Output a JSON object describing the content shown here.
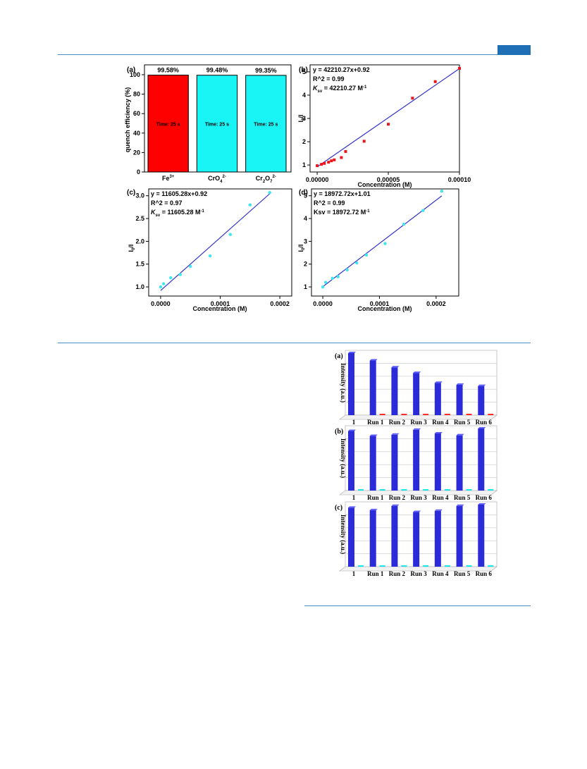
{
  "colors": {
    "accent": "#1f6fb6",
    "rule": "#4a8ec9",
    "red": "#ff0000",
    "cyan": "#19f5f5",
    "blue": "#2b2bd9",
    "fit": "#3333cc"
  },
  "figure1": {
    "panel_a": {
      "label": "(a)",
      "ylabel": "quench efficiency (%)",
      "yticks": [
        "0",
        "20",
        "40",
        "60",
        "80",
        "100"
      ],
      "bars": [
        {
          "pct": "99.58%",
          "time": "Time: 25 s",
          "ion": "Fe",
          "sup": "3+",
          "sub": "",
          "color": "#ff0000",
          "value": 99.58
        },
        {
          "pct": "99.48%",
          "time": "Time: 25 s",
          "ion": "CrO",
          "sub": "4",
          "sup": "2-",
          "color": "#19f5f5",
          "value": 99.48
        },
        {
          "pct": "99.35%",
          "time": "Time: 25 s",
          "ion": "Cr",
          "sub": "2",
          "mid": "O",
          "sub2": "7",
          "sup": "2-",
          "color": "#19f5f5",
          "value": 99.35
        }
      ]
    },
    "panel_b": {
      "label": "(b)",
      "eq": "y = 42210.27x+0.92",
      "r2": "R^2 = 0.99",
      "k": "K",
      "ksub": "sv",
      "kval": " = 42210.27 M",
      "kunit": "-1",
      "xlabel": "Concentration (M)",
      "ylabel": "I0/I",
      "xticks": [
        "0.00000",
        "0.00005",
        "0.00010"
      ],
      "yticks": [
        "1",
        "2",
        "3",
        "4",
        "5"
      ]
    },
    "panel_c": {
      "label": "(c)",
      "eq": "y = 11605.28x+0.92",
      "r2": "R^2 = 0.97",
      "k": "K",
      "ksub": "sv",
      "kval": " = 11605.28 M",
      "kunit": "-1",
      "xlabel": "Concentration (M)",
      "ylabel": "I0/I",
      "xticks": [
        "0.0000",
        "0.0001",
        "0.0002"
      ],
      "yticks": [
        "1.0",
        "1.5",
        "2.0",
        "2.5",
        "3.0"
      ]
    },
    "panel_d": {
      "label": "(d)",
      "eq": "y = 18972.72x+1.01",
      "r2": "R^2 = 0.99",
      "k": "Ksv = 18972.72 M",
      "kunit": "-1",
      "xlabel": "Concentration (M)",
      "ylabel": "I0/I",
      "xticks": [
        "0.0000",
        "0.0001",
        "0.0002"
      ],
      "yticks": [
        "1",
        "2",
        "3",
        "4",
        "5"
      ]
    }
  },
  "figure2": {
    "ylabel": "Intensity (a.u.)",
    "categories": [
      "1",
      "Run 1",
      "Run 2",
      "Run 3",
      "Run 4",
      "Run 5",
      "Run 6"
    ],
    "panels": [
      {
        "label": "(a)",
        "small_color": "#ff2a2a"
      },
      {
        "label": "(b)",
        "small_color": "#19e6e6"
      },
      {
        "label": "(c)",
        "small_color": "#19e6e6"
      }
    ]
  },
  "chart_data": [
    {
      "type": "bar",
      "title": "",
      "categories": [
        "Fe3+",
        "CrO4 2-",
        "Cr2O7 2-"
      ],
      "values": [
        99.58,
        99.48,
        99.35
      ],
      "ylabel": "quench efficiency (%)",
      "ylim": [
        0,
        100
      ]
    },
    {
      "type": "scatter",
      "title": "",
      "xlabel": "Concentration (M)",
      "ylabel": "I0/I",
      "xlim": [
        -5e-06,
        0.0001
      ],
      "ylim": [
        0.7,
        5.3
      ],
      "x": [
        0.0,
        3e-06,
        5e-06,
        8e-06,
        1e-05,
        1.2e-05,
        1.7e-05,
        2e-05,
        3.3e-05,
        5e-05,
        6.7e-05,
        8.3e-05,
        0.0001
      ],
      "y": [
        0.97,
        1.03,
        1.07,
        1.12,
        1.18,
        1.22,
        1.32,
        1.58,
        2.02,
        2.75,
        3.87,
        4.58,
        5.15
      ],
      "fit": {
        "slope": 42210.27,
        "intercept": 0.92
      }
    },
    {
      "type": "scatter",
      "title": "",
      "xlabel": "Concentration (M)",
      "ylabel": "I0/I",
      "xlim": [
        -2e-05,
        0.00022
      ],
      "ylim": [
        0.8,
        3.15
      ],
      "x": [
        0.0,
        5e-06,
        1.7e-05,
        3.3e-05,
        5e-05,
        8.3e-05,
        0.000117,
        0.00015,
        0.000183
      ],
      "y": [
        1.0,
        1.07,
        1.2,
        1.27,
        1.45,
        1.68,
        2.15,
        2.8,
        3.07
      ],
      "fit": {
        "slope": 11605.28,
        "intercept": 0.92
      }
    },
    {
      "type": "scatter",
      "title": "",
      "xlabel": "Concentration (M)",
      "ylabel": "I0/I",
      "xlim": [
        -2e-05,
        0.00024
      ],
      "ylim": [
        0.6,
        5.3
      ],
      "x": [
        0.0,
        5e-06,
        1.7e-05,
        2.7e-05,
        4.3e-05,
        6e-05,
        7.7e-05,
        0.00011,
        0.000143,
        0.000177,
        0.00021
      ],
      "y": [
        1.0,
        1.2,
        1.38,
        1.45,
        1.75,
        2.05,
        2.4,
        2.9,
        3.75,
        4.35,
        5.2
      ],
      "fit": {
        "slope": 18972.72,
        "intercept": 1.01
      }
    },
    {
      "type": "bar",
      "title": "",
      "categories": [
        "1",
        "Run 1",
        "Run 2",
        "Run 3",
        "Run 4",
        "Run 5",
        "Run 6"
      ],
      "series": [
        {
          "values": [
            100,
            88,
            77,
            68,
            52,
            49,
            47
          ]
        },
        {
          "values": [
            0,
            2,
            3,
            2,
            3,
            3,
            2
          ]
        }
      ]
    },
    {
      "type": "bar",
      "title": "",
      "categories": [
        "1",
        "Run 1",
        "Run 2",
        "Run 3",
        "Run 4",
        "Run 5",
        "Run 6"
      ],
      "series": [
        {
          "values": [
            96,
            88,
            90,
            98,
            92,
            89,
            100
          ]
        },
        {
          "values": [
            1,
            1,
            1,
            1,
            1,
            1,
            1
          ]
        }
      ]
    },
    {
      "type": "bar",
      "title": "",
      "categories": [
        "1",
        "Run 1",
        "Run 2",
        "Run 3",
        "Run 4",
        "Run 5",
        "Run 6"
      ],
      "series": [
        {
          "values": [
            95,
            91,
            98,
            88,
            90,
            98,
            100
          ]
        },
        {
          "values": [
            1,
            1,
            1,
            1,
            1,
            1,
            1
          ]
        }
      ]
    }
  ]
}
